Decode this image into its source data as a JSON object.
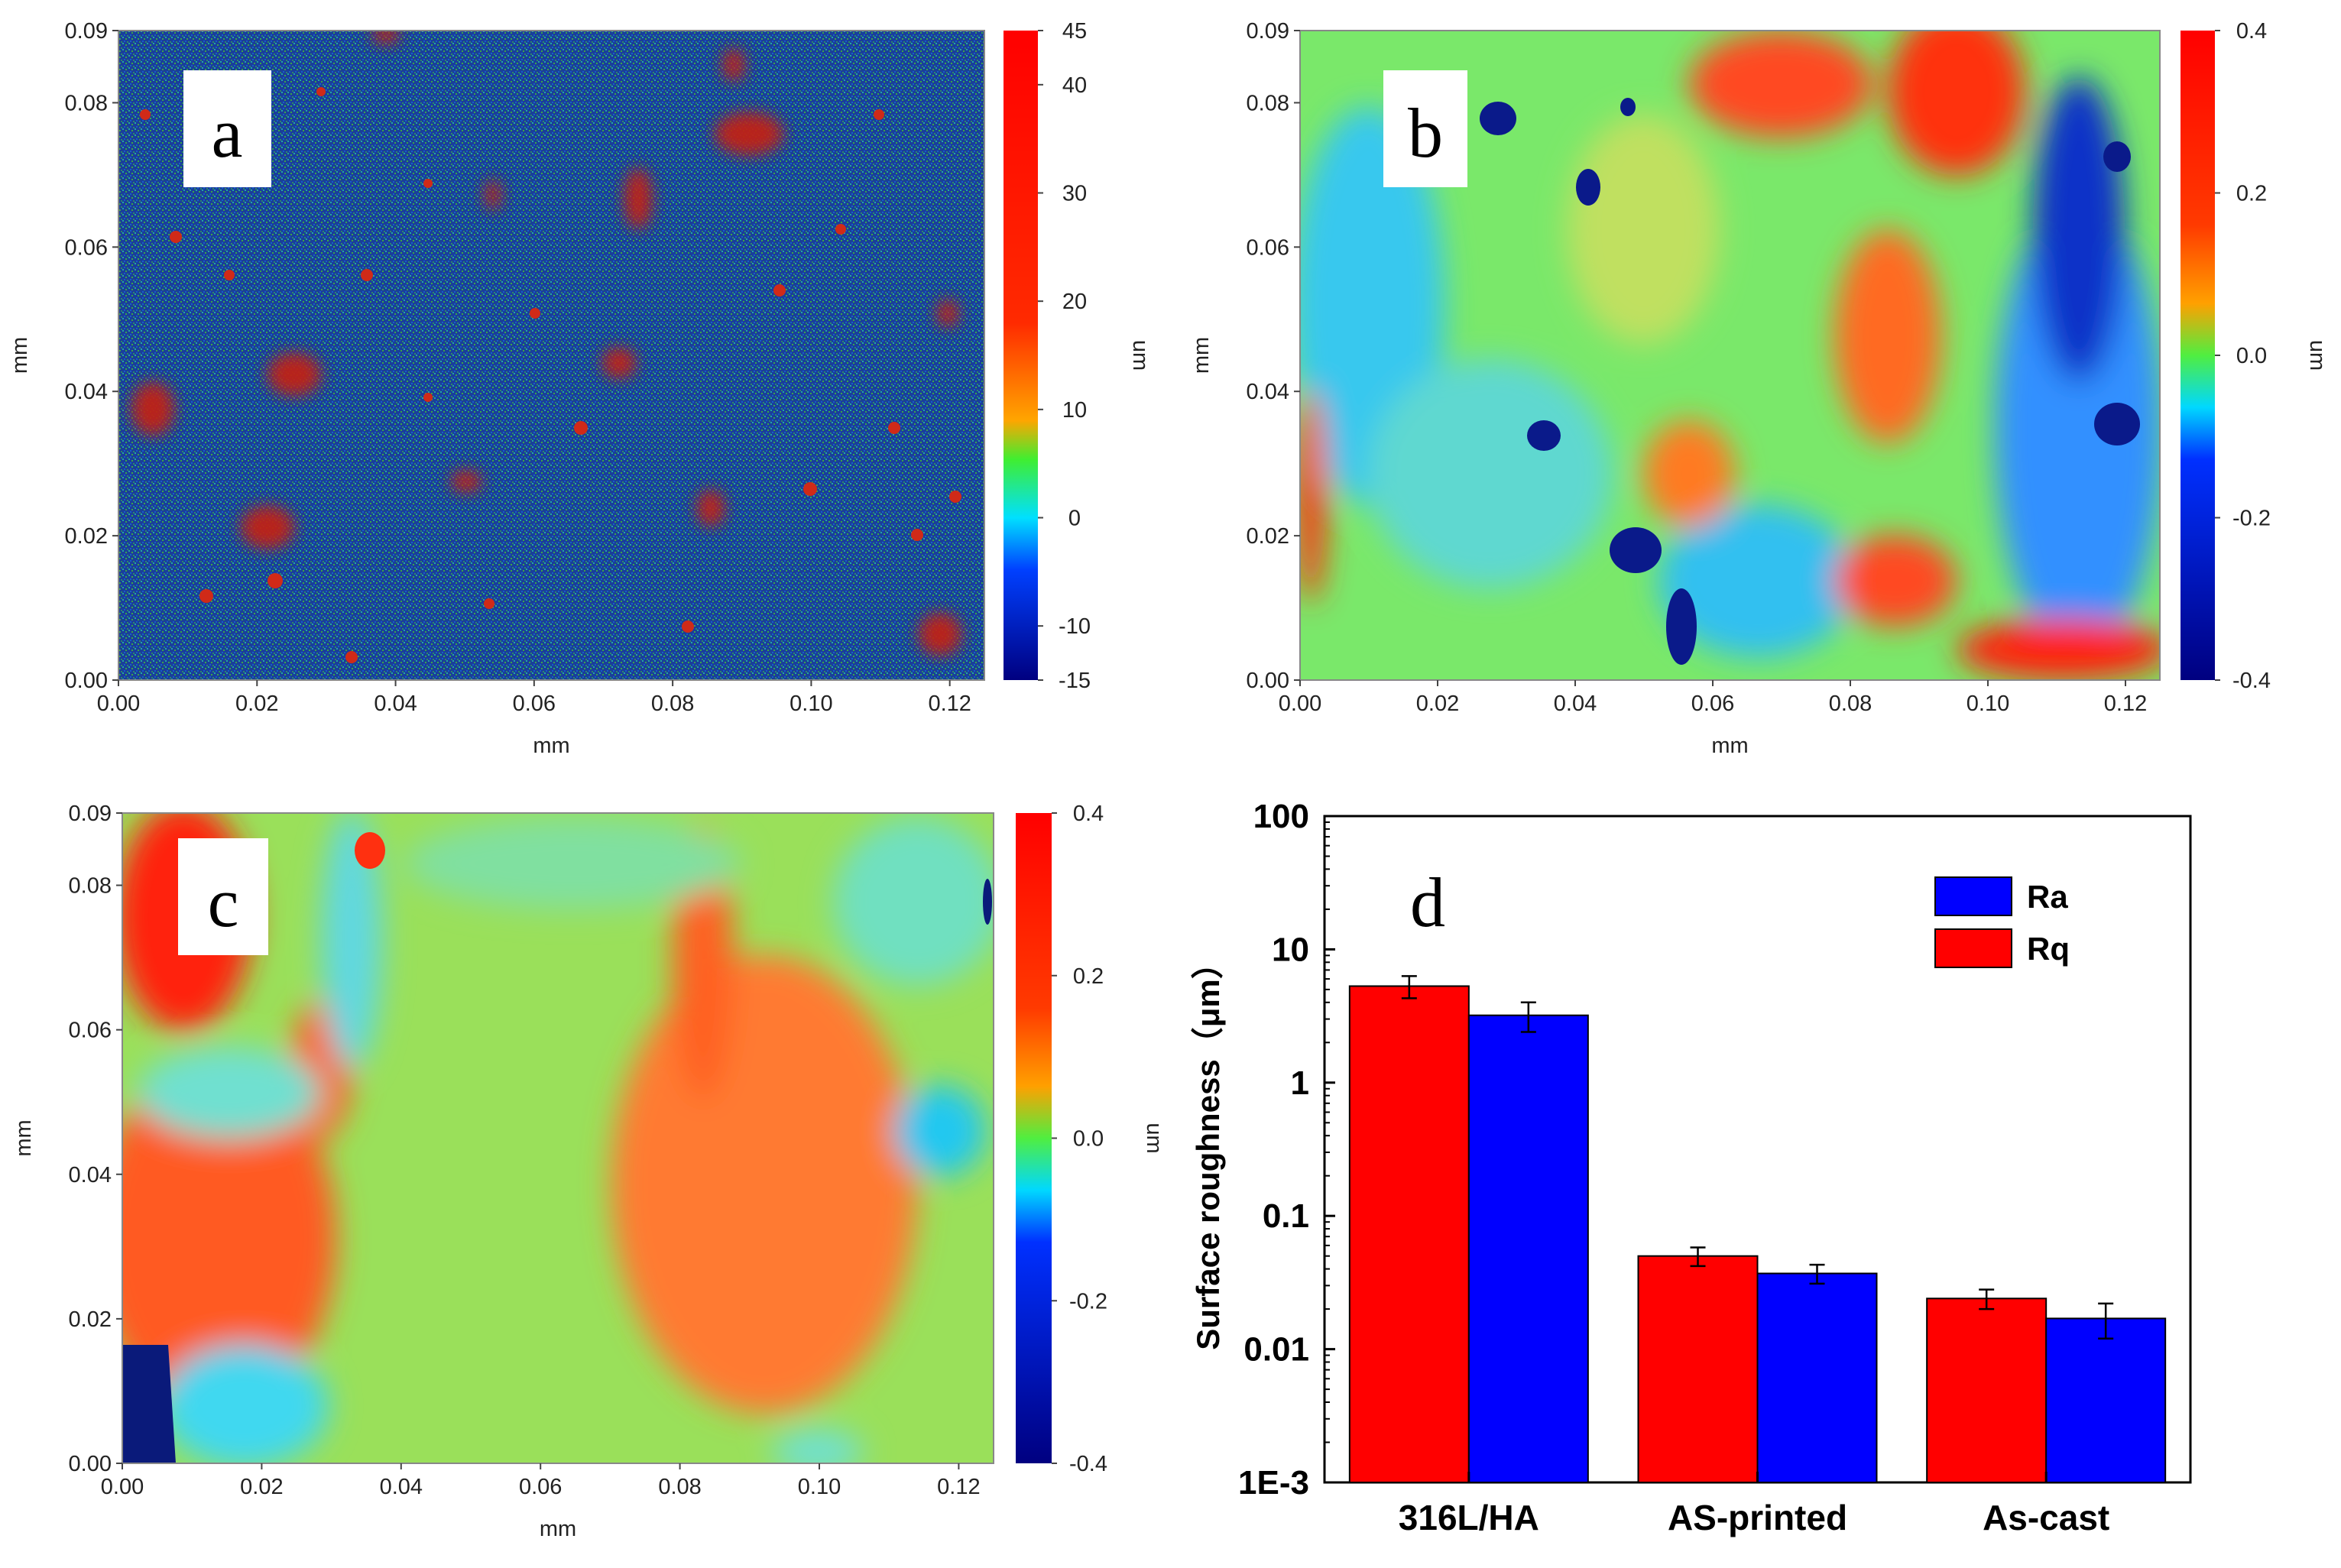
{
  "maps": [
    {
      "id": "a",
      "letter": "a",
      "xlabel": "mm",
      "ylabel": "mm",
      "cb_unit": "um",
      "xticks": [
        "0.00",
        "0.02",
        "0.04",
        "0.06",
        "0.08",
        "0.10",
        "0.12"
      ],
      "yticks": [
        "0.00",
        "0.02",
        "0.04",
        "0.06",
        "0.08",
        "0.09"
      ],
      "cb_ticks": [
        "45",
        "40",
        "30",
        "20",
        "10",
        "0",
        "-10",
        "-15"
      ]
    },
    {
      "id": "b",
      "letter": "b",
      "xlabel": "mm",
      "ylabel": "mm",
      "cb_unit": "um",
      "xticks": [
        "0.00",
        "0.02",
        "0.04",
        "0.06",
        "0.08",
        "0.10",
        "0.12"
      ],
      "yticks": [
        "0.00",
        "0.02",
        "0.04",
        "0.06",
        "0.08",
        "0.09"
      ],
      "cb_ticks": [
        "0.4",
        "0.2",
        "0.0",
        "-0.2",
        "-0.4"
      ]
    },
    {
      "id": "c",
      "letter": "c",
      "xlabel": "mm",
      "ylabel": "mm",
      "cb_unit": "um",
      "xticks": [
        "0.00",
        "0.02",
        "0.04",
        "0.06",
        "0.08",
        "0.10",
        "0.12"
      ],
      "yticks": [
        "0.00",
        "0.02",
        "0.04",
        "0.06",
        "0.08",
        "0.09"
      ],
      "cb_ticks": [
        "0.4",
        "0.2",
        "0.0",
        "-0.2",
        "-0.4"
      ]
    }
  ],
  "chart_data": {
    "type": "bar",
    "letter": "d",
    "yscale": "log",
    "ylabel": "Surface roughness（μm）",
    "yticks": [
      "1E-3",
      "0.01",
      "0.1",
      "1",
      "10",
      "100"
    ],
    "ylim": [
      0.001,
      100
    ],
    "categories": [
      "316L/HA",
      "AS-printed",
      "As-cast"
    ],
    "series": [
      {
        "name": "Rq",
        "color": "#ff0000",
        "values": [
          5.3,
          0.05,
          0.024
        ],
        "errors": [
          1.0,
          0.008,
          0.004
        ]
      },
      {
        "name": "Ra",
        "color": "#0000ff",
        "values": [
          3.2,
          0.037,
          0.017
        ],
        "errors": [
          0.8,
          0.006,
          0.005
        ]
      }
    ],
    "legend": [
      "Ra",
      "Rq"
    ]
  }
}
